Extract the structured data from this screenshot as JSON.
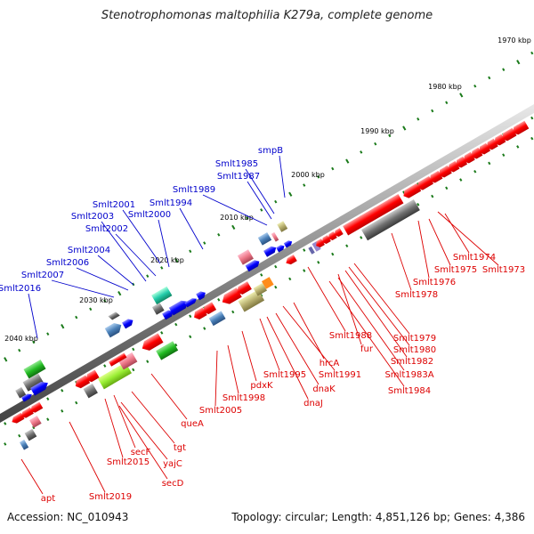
{
  "title": "Stenotrophomonas maltophilia K279a, complete genome",
  "footer": {
    "accession": "Accession: NC_010943",
    "topology": "Topology: circular; Length: 4,851,126 bp; Genes: 4,386"
  },
  "colors": {
    "forward_label": "#0000cc",
    "reverse_label": "#dd0000",
    "backbone": "#808080",
    "tick": "#1a7a1a",
    "feature_red": "#ff0000",
    "feature_blue": "#0000ff"
  },
  "scale_labels": [
    "1970 kbp",
    "1980 kbp",
    "1990 kbp",
    "2000 kbp",
    "2010 kbp",
    "2020 kbp",
    "2030 kbp",
    "2040 kbp"
  ],
  "forward_genes": [
    "smpB",
    "Smlt1985",
    "Smlt1987",
    "Smlt1989",
    "Smlt1994",
    "Smlt2001",
    "Smlt2000",
    "Smlt2003",
    "Smlt2002",
    "Smlt2004",
    "Smlt2006",
    "Smlt2007",
    "Smlt2016"
  ],
  "reverse_genes": [
    "Smlt1974",
    "Smlt1973",
    "Smlt1975",
    "Smlt1976",
    "Smlt1978",
    "Smlt1979",
    "Smlt1980",
    "Smlt1988",
    "Smlt1982",
    "fur",
    "Smlt1983A",
    "Smlt1984",
    "hrcA",
    "Smlt1991",
    "Smlt1995",
    "dnaK",
    "dnaJ",
    "pdxK",
    "Smlt1998",
    "Smlt2005",
    "queA",
    "tgt",
    "secF",
    "Smlt2015",
    "yajC",
    "secD",
    "Smlt2019",
    "apt"
  ]
}
